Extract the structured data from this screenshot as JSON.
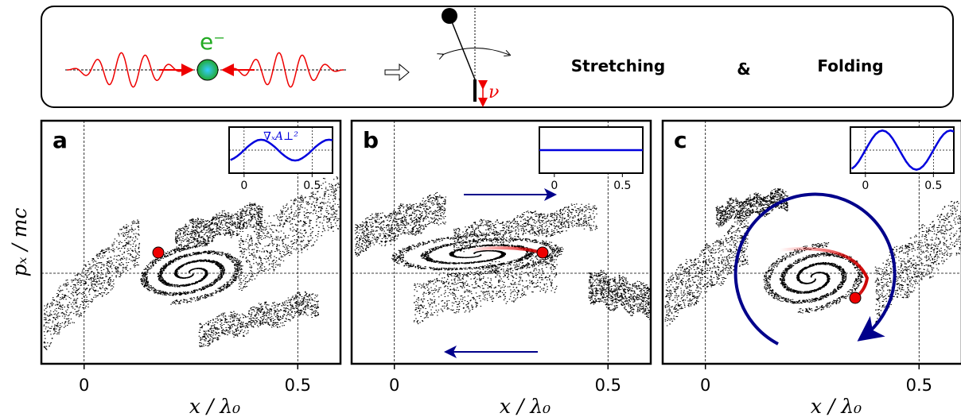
{
  "header": {
    "particle": "e⁻",
    "frequency": "ν",
    "stretching": "Stretching",
    "and": "&",
    "folding": "Folding"
  },
  "y_label": "pₓ / mc",
  "panels": [
    {
      "label": "a",
      "x_label": "x / λ₀",
      "xlim": [
        -0.1,
        0.6
      ],
      "xticks": [
        0,
        0.5
      ],
      "grid": true,
      "inset": {
        "type": "line",
        "label": "∇ₓA⊥²",
        "color": "#0000dd",
        "xlim": [
          -0.11,
          0.65
        ],
        "ylim": [
          -1,
          1
        ],
        "xticks": [
          0,
          0.5
        ],
        "x": [
          -0.1,
          -0.075,
          -0.05,
          -0.025,
          0,
          0.025,
          0.05,
          0.075,
          0.1,
          0.125,
          0.15,
          0.175,
          0.2,
          0.225,
          0.25,
          0.275,
          0.3,
          0.325,
          0.35,
          0.375,
          0.4,
          0.425,
          0.45,
          0.475,
          0.5,
          0.525,
          0.55,
          0.575,
          0.6,
          0.625,
          0.65
        ],
        "values": [
          -0.43,
          -0.36,
          -0.26,
          -0.14,
          0,
          0.14,
          0.26,
          0.36,
          0.43,
          0.45,
          0.43,
          0.36,
          0.26,
          0.14,
          0,
          -0.14,
          -0.26,
          -0.36,
          -0.43,
          -0.45,
          -0.43,
          -0.36,
          -0.26,
          -0.14,
          0,
          0.14,
          0.26,
          0.36,
          0.43,
          0.45,
          0.43
        ]
      }
    },
    {
      "label": "b",
      "x_label": "x / λ₀",
      "xlim": [
        -0.1,
        0.6
      ],
      "xticks": [
        0,
        0.5
      ],
      "grid": true,
      "inset": {
        "type": "line",
        "color": "#0000dd",
        "xlim": [
          -0.11,
          0.65
        ],
        "ylim": [
          -1,
          1
        ],
        "xticks": [
          0,
          0.5
        ],
        "x": [
          -0.11,
          0.65
        ],
        "values": [
          0,
          0
        ]
      }
    },
    {
      "label": "c",
      "x_label": "x / λ₀",
      "xlim": [
        -0.1,
        0.6
      ],
      "xticks": [
        0,
        0.5
      ],
      "grid": true,
      "inset": {
        "type": "line",
        "color": "#0000dd",
        "xlim": [
          -0.11,
          0.65
        ],
        "ylim": [
          -1,
          1
        ],
        "xticks": [
          0,
          0.5
        ],
        "x": [
          -0.1,
          -0.075,
          -0.05,
          -0.025,
          0,
          0.025,
          0.05,
          0.075,
          0.1,
          0.125,
          0.15,
          0.175,
          0.2,
          0.225,
          0.25,
          0.275,
          0.3,
          0.325,
          0.35,
          0.375,
          0.4,
          0.425,
          0.45,
          0.475,
          0.5,
          0.525,
          0.55,
          0.575,
          0.6,
          0.625,
          0.65
        ],
        "values": [
          -0.81,
          -0.69,
          -0.5,
          -0.26,
          0,
          0.26,
          0.5,
          0.69,
          0.81,
          0.85,
          0.81,
          0.69,
          0.5,
          0.26,
          0,
          -0.26,
          -0.5,
          -0.69,
          -0.81,
          -0.85,
          -0.81,
          -0.69,
          -0.5,
          -0.26,
          0,
          0.26,
          0.5,
          0.69,
          0.81,
          0.85,
          0.81
        ]
      }
    }
  ]
}
